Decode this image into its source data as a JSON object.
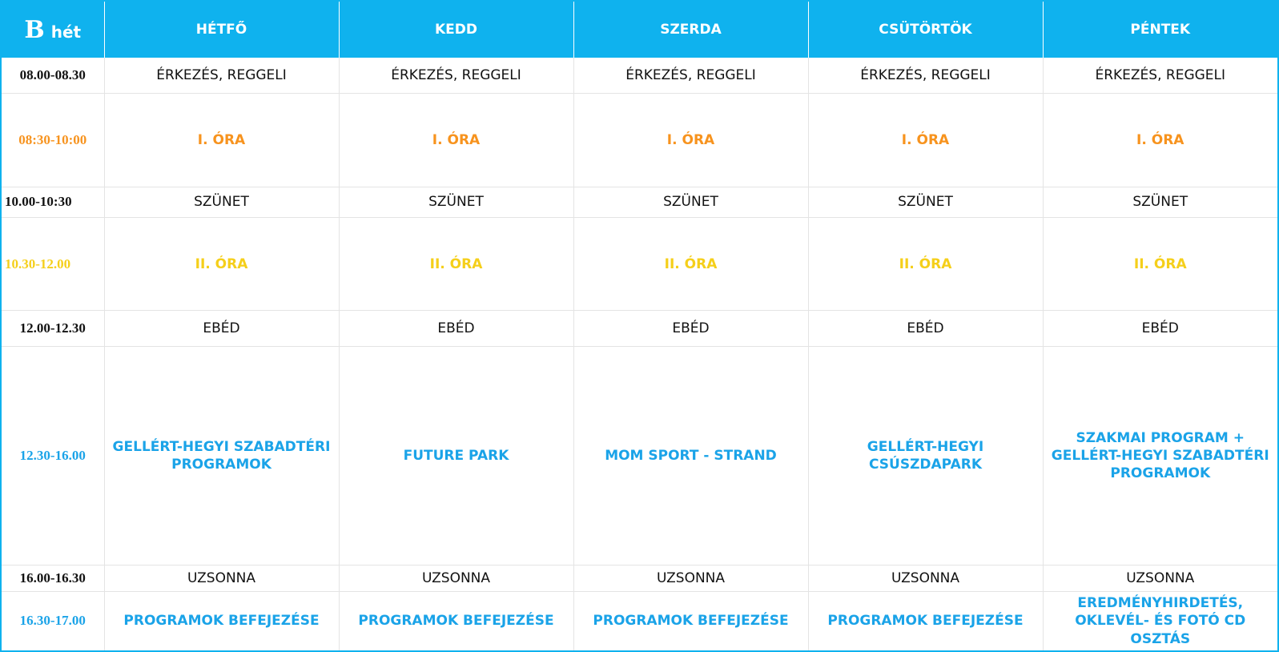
{
  "header": {
    "week_letter": "B",
    "week_word": "hét",
    "days": [
      "HÉTFŐ",
      "KEDD",
      "SZERDA",
      "CSÜTÖRTÖK",
      "PÉNTEK"
    ]
  },
  "rows": [
    {
      "time": "08.00-08.30",
      "cells": [
        "ÉRKEZÉS, REGGELI",
        "ÉRKEZÉS, REGGELI",
        "ÉRKEZÉS, REGGELI",
        "ÉRKEZÉS, REGGELI",
        "ÉRKEZÉS, REGGELI"
      ]
    },
    {
      "time": "08:30-10:00",
      "cells": [
        "I. ÓRA",
        "I. ÓRA",
        "I. ÓRA",
        "I. ÓRA",
        "I. ÓRA"
      ]
    },
    {
      "time": "10.00-10:30",
      "cells": [
        "SZÜNET",
        "SZÜNET",
        "SZÜNET",
        "SZÜNET",
        "SZÜNET"
      ]
    },
    {
      "time": "10.30-12.00",
      "cells": [
        "II. ÓRA",
        "II. ÓRA",
        "II. ÓRA",
        "II. ÓRA",
        "II. ÓRA"
      ]
    },
    {
      "time": "12.00-12.30",
      "cells": [
        "EBÉD",
        "EBÉD",
        "EBÉD",
        "EBÉD",
        "EBÉD"
      ]
    },
    {
      "time": "12.30-16.00",
      "cells": [
        "GELLÉRT-HEGYI SZABADTÉRI PROGRAMOK",
        "FUTURE PARK",
        "MOM SPORT - STRAND",
        "GELLÉRT-HEGYI CSÚSZDAPARK",
        "SZAKMAI PROGRAM + GELLÉRT-HEGYI SZABADTÉRI PROGRAMOK"
      ]
    },
    {
      "time": "16.00-16.30",
      "cells": [
        "UZSONNA",
        "UZSONNA",
        "UZSONNA",
        "UZSONNA",
        "UZSONNA"
      ]
    },
    {
      "time": "16.30-17.00",
      "cells": [
        "PROGRAMOK BEFEJEZÉSE",
        "PROGRAMOK BEFEJEZÉSE",
        "PROGRAMOK BEFEJEZÉSE",
        "PROGRAMOK BEFEJEZÉSE",
        "EREDMÉNYHIRDETÉS, OKLEVÉL- ÉS FOTÓ CD OSZTÁS"
      ]
    }
  ],
  "colors": {
    "header_bg": "#0fb2ee",
    "orange": "#f7931e",
    "yellow": "#f5cf1a",
    "blue": "#1aa3e8"
  }
}
